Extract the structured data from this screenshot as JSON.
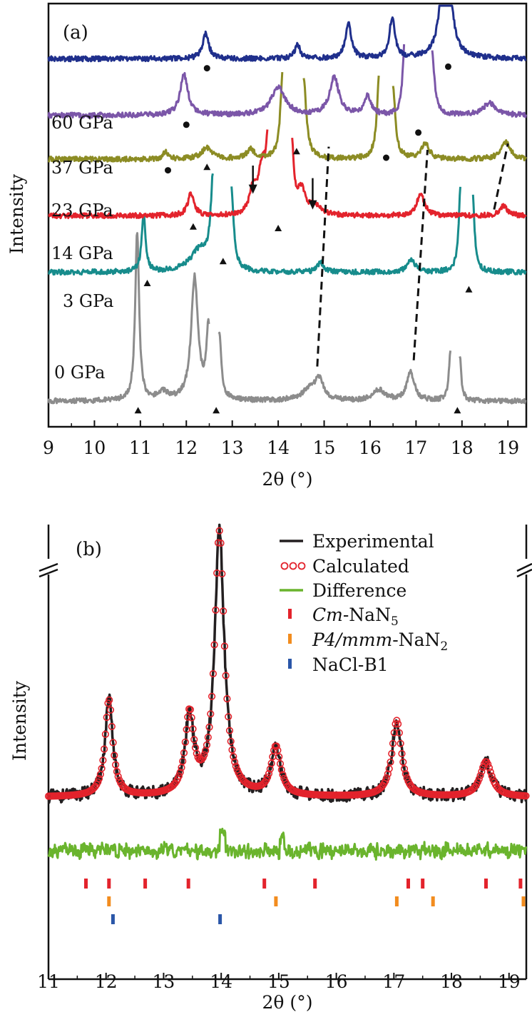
{
  "chart_data": [
    {
      "panel": "(a)",
      "type": "line",
      "xlabel": "2θ (°)",
      "ylabel": "Intensity",
      "xlim": [
        9,
        19.4
      ],
      "x_ticks": [
        9,
        10,
        11,
        12,
        13,
        14,
        15,
        16,
        17,
        18,
        19
      ],
      "tick_labels": [
        "9",
        "10",
        "11",
        "12",
        "13",
        "14",
        "15",
        "16",
        "17",
        "18",
        "19"
      ],
      "series": [
        {
          "name": "0 GPa",
          "label": "0 GPa",
          "color": "#8c8c8c",
          "baseline": 0.0,
          "breaks": [
            [
              12.5,
              12.7
            ],
            [
              17.75,
              17.95
            ]
          ],
          "peaks": [
            [
              10.93,
              5.4,
              0.05
            ],
            [
              11.5,
              0.25,
              0.12
            ],
            [
              12.18,
              3.9,
              0.09
            ],
            [
              12.48,
              2.2,
              0.05
            ],
            [
              12.72,
              2.0,
              0.05
            ],
            [
              14.7,
              0.4,
              0.2
            ],
            [
              14.9,
              0.6,
              0.1
            ],
            [
              16.2,
              0.35,
              0.15
            ],
            [
              16.88,
              0.9,
              0.1
            ],
            [
              17.75,
              1.6,
              0.04
            ],
            [
              17.95,
              1.4,
              0.04
            ]
          ]
        },
        {
          "name": "3 GPa",
          "label": "3 GPa",
          "color": "#178c8c",
          "baseline": 4.1,
          "breaks": [
            [
              12.58,
              12.98
            ],
            [
              17.97,
              18.23
            ]
          ],
          "peaks": [
            [
              11.07,
              1.8,
              0.05
            ],
            [
              12.3,
              0.7,
              0.25
            ],
            [
              12.58,
              2.8,
              0.06
            ],
            [
              12.98,
              2.6,
              0.06
            ],
            [
              14.92,
              0.3,
              0.08
            ],
            [
              16.9,
              0.4,
              0.1
            ],
            [
              17.97,
              2.6,
              0.05
            ],
            [
              18.23,
              2.4,
              0.05
            ]
          ]
        },
        {
          "name": "14 GPa",
          "label": "14 GPa",
          "color": "#e3232c",
          "baseline": 5.9,
          "breaks": [
            [
              13.77,
              14.3
            ]
          ],
          "peaks": [
            [
              12.1,
              0.7,
              0.08
            ],
            [
              13.45,
              0.8,
              0.08
            ],
            [
              13.65,
              1.5,
              0.1
            ],
            [
              13.77,
              2.0,
              0.05
            ],
            [
              14.3,
              2.2,
              0.05
            ],
            [
              14.5,
              0.8,
              0.1
            ],
            [
              14.8,
              0.3,
              0.15
            ],
            [
              17.1,
              0.7,
              0.1
            ],
            [
              18.9,
              0.3,
              0.1
            ]
          ]
        },
        {
          "name": "23 GPa",
          "label": "23 GPa",
          "color": "#8c8c24",
          "baseline": 7.7,
          "breaks": [
            [
              14.1,
              14.55
            ],
            [
              16.2,
              16.5
            ]
          ],
          "peaks": [
            [
              11.55,
              0.25,
              0.06
            ],
            [
              12.45,
              0.35,
              0.15
            ],
            [
              13.4,
              0.3,
              0.1
            ],
            [
              14.1,
              2.8,
              0.06
            ],
            [
              14.55,
              2.6,
              0.07
            ],
            [
              16.2,
              2.6,
              0.06
            ],
            [
              16.5,
              2.2,
              0.06
            ],
            [
              17.2,
              0.5,
              0.1
            ],
            [
              18.95,
              0.55,
              0.12
            ]
          ]
        },
        {
          "name": "37 GPa",
          "label": "37 GPa",
          "color": "#7b56a8",
          "baseline": 9.1,
          "breaks": [
            [
              16.75,
              17.35
            ]
          ],
          "peaks": [
            [
              11.95,
              1.3,
              0.1
            ],
            [
              14.0,
              0.9,
              0.18
            ],
            [
              15.22,
              1.2,
              0.12
            ],
            [
              15.95,
              0.6,
              0.08
            ],
            [
              16.75,
              2.3,
              0.05
            ],
            [
              17.35,
              2.0,
              0.06
            ],
            [
              18.6,
              0.4,
              0.15
            ]
          ]
        },
        {
          "name": "60 GPa",
          "label": "60 GPa",
          "color": "#1f2f8c",
          "baseline": 10.9,
          "breaks": [],
          "peaks": [
            [
              12.42,
              0.8,
              0.08
            ],
            [
              14.42,
              0.45,
              0.07
            ],
            [
              15.53,
              1.1,
              0.08
            ],
            [
              16.48,
              1.3,
              0.07
            ],
            [
              17.65,
              5.0,
              0.1
            ]
          ]
        }
      ],
      "triangle_markers": [
        [
          10.95,
          -0.3
        ],
        [
          12.65,
          -0.3
        ],
        [
          17.9,
          -0.3
        ],
        [
          11.15,
          3.75
        ],
        [
          12.8,
          4.45
        ],
        [
          18.15,
          3.55
        ],
        [
          12.15,
          5.55
        ],
        [
          14.0,
          5.5
        ],
        [
          12.45,
          7.45
        ],
        [
          14.4,
          7.95
        ]
      ],
      "circle_markers": [
        [
          11.6,
          7.35
        ],
        [
          16.35,
          7.75
        ],
        [
          12.0,
          8.8
        ],
        [
          17.05,
          8.55
        ],
        [
          12.45,
          10.6
        ],
        [
          17.7,
          10.65
        ]
      ],
      "arrows": [
        [
          13.45,
          7.5,
          6.6
        ],
        [
          14.75,
          7.1,
          6.1
        ]
      ],
      "dashed_lines": [
        [
          [
            14.85,
            1.1
          ],
          [
            15.1,
            8.1
          ]
        ],
        [
          [
            16.95,
            1.3
          ],
          [
            17.25,
            8.0
          ]
        ],
        [
          [
            18.7,
            6.1
          ],
          [
            19.0,
            8.2
          ]
        ]
      ]
    },
    {
      "panel": "(b)",
      "type": "line",
      "xlabel": "2θ (°)",
      "ylabel": "Intensity",
      "xlim": [
        11,
        19.3
      ],
      "x_ticks": [
        11,
        12,
        13,
        14,
        15,
        16,
        17,
        18,
        19
      ],
      "tick_labels": [
        "11",
        "12",
        "13",
        "14",
        "15",
        "16",
        "17",
        "18",
        "19"
      ],
      "axis_break": true,
      "legend": [
        {
          "key": "experimental",
          "label": "Experimental",
          "style": "line",
          "color": "#231f20"
        },
        {
          "key": "calculated",
          "label": "Calculated",
          "style": "circle",
          "color": "#e3232c"
        },
        {
          "key": "difference",
          "label": "Difference",
          "style": "line",
          "color": "#6ab42d"
        },
        {
          "key": "cm",
          "prefix": "Cm",
          "suffix": "-NaN",
          "sub": "5",
          "style": "tick",
          "color": "#e3232c"
        },
        {
          "key": "p4",
          "prefix": "P4/mmm",
          "suffix": "-NaN",
          "sub": "2",
          "style": "tick",
          "color": "#f28c1e"
        },
        {
          "key": "nacl",
          "label": "NaCl-B1",
          "style": "tick",
          "color": "#2a56a8"
        }
      ],
      "peaks": [
        [
          12.05,
          6.6,
          0.08
        ],
        [
          13.45,
          5.4,
          0.09
        ],
        [
          13.97,
          18.0,
          0.1
        ],
        [
          14.95,
          3.3,
          0.1
        ],
        [
          17.05,
          5.2,
          0.1
        ],
        [
          18.6,
          2.4,
          0.12
        ]
      ],
      "reflections": {
        "cm": [
          11.65,
          12.05,
          12.68,
          13.43,
          14.75,
          15.63,
          17.25,
          17.5,
          18.6,
          19.2
        ],
        "p4": [
          12.05,
          14.95,
          17.05,
          17.68,
          19.25
        ],
        "nacl": [
          12.12,
          13.98
        ]
      }
    }
  ]
}
